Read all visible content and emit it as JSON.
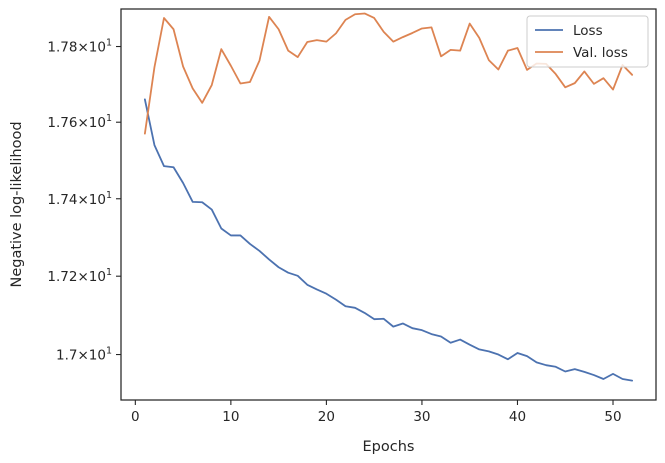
{
  "chart_data": {
    "type": "line",
    "title": "",
    "xlabel": "Epochs",
    "ylabel": "Negative log-likelihood",
    "xlim": [
      -1.5,
      54.5
    ],
    "ylim": [
      16.885,
      17.9
    ],
    "xticks": [
      0,
      10,
      20,
      30,
      40,
      50
    ],
    "xtick_labels": [
      "0",
      "10",
      "20",
      "30",
      "40",
      "50"
    ],
    "yticks": [
      17.0,
      17.2,
      17.4,
      17.6,
      17.8
    ],
    "ytick_labels": [
      {
        "base": "1.7",
        "exp": "1"
      },
      {
        "base": "1.72",
        "exp": "1"
      },
      {
        "base": "1.74",
        "exp": "1"
      },
      {
        "base": "1.76",
        "exp": "1"
      },
      {
        "base": "1.78",
        "exp": "1"
      }
    ],
    "yscale_note": "log",
    "grid": false,
    "legend_position": "top-right",
    "x": [
      1,
      2,
      3,
      4,
      5,
      6,
      7,
      8,
      9,
      10,
      11,
      12,
      13,
      14,
      15,
      16,
      17,
      18,
      19,
      20,
      21,
      22,
      23,
      24,
      25,
      26,
      27,
      28,
      29,
      30,
      31,
      32,
      33,
      34,
      35,
      36,
      37,
      38,
      39,
      40,
      41,
      42,
      43,
      44,
      45,
      46,
      47,
      48,
      49,
      50,
      51,
      52
    ],
    "series": [
      {
        "name": "Loss",
        "color": "#4c72b0",
        "values": [
          17.66,
          17.54,
          17.485,
          17.482,
          17.441,
          17.392,
          17.391,
          17.372,
          17.323,
          17.305,
          17.305,
          17.283,
          17.265,
          17.243,
          17.223,
          17.209,
          17.201,
          17.178,
          17.166,
          17.155,
          17.14,
          17.123,
          17.119,
          17.106,
          17.09,
          17.091,
          17.071,
          17.079,
          17.067,
          17.062,
          17.052,
          17.046,
          17.03,
          17.038,
          17.025,
          17.013,
          17.008,
          17.0,
          16.988,
          17.004,
          16.996,
          16.98,
          16.973,
          16.969,
          16.957,
          16.963,
          16.956,
          16.948,
          16.938,
          16.951,
          16.938,
          16.934
        ]
      },
      {
        "name": "Val. loss",
        "color": "#dd8452",
        "values": [
          17.57,
          17.745,
          17.876,
          17.846,
          17.747,
          17.689,
          17.651,
          17.698,
          17.793,
          17.749,
          17.702,
          17.706,
          17.763,
          17.879,
          17.846,
          17.789,
          17.772,
          17.812,
          17.817,
          17.813,
          17.835,
          17.871,
          17.886,
          17.888,
          17.876,
          17.839,
          17.813,
          17.825,
          17.836,
          17.848,
          17.851,
          17.774,
          17.791,
          17.789,
          17.861,
          17.823,
          17.764,
          17.739,
          17.789,
          17.796,
          17.738,
          17.755,
          17.754,
          17.727,
          17.692,
          17.703,
          17.734,
          17.701,
          17.716,
          17.686,
          17.751,
          17.725
        ]
      }
    ]
  }
}
